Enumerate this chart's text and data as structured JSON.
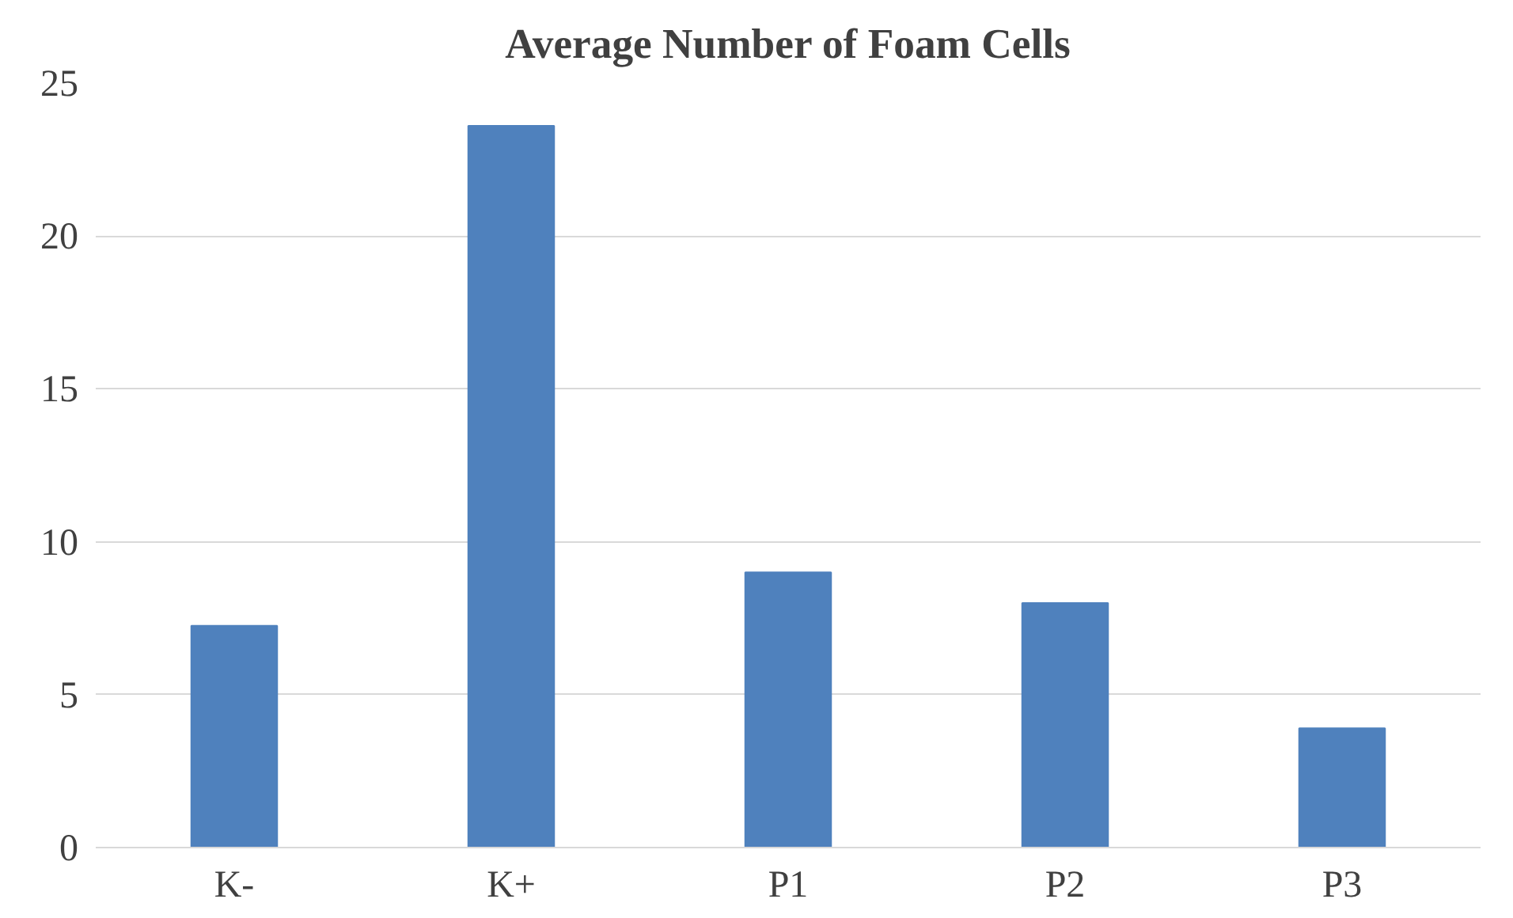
{
  "chart_data": {
    "type": "bar",
    "title": "Average Number of Foam Cells",
    "categories": [
      "K-",
      "K+",
      "P1",
      "P2",
      "P3"
    ],
    "values": [
      7.25,
      23.6,
      9.0,
      8.0,
      3.9
    ],
    "color": "#4f81bd",
    "ylim": [
      0,
      25
    ],
    "yticks": [
      0,
      5,
      10,
      15,
      20,
      25
    ],
    "grid": "y"
  }
}
